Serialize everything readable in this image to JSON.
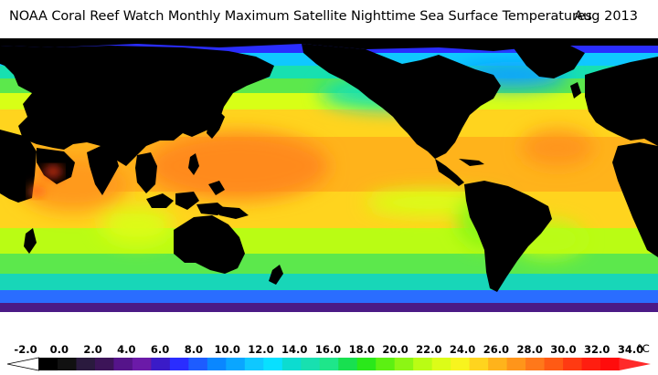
{
  "header": {
    "title": "NOAA Coral Reef Watch Monthly Maximum Satellite Nighttime Sea Surface Temperatures",
    "date": "Aug 2013"
  },
  "icons": {
    "map": "world-sst-map-icon",
    "colorbar": "temperature-colorbar-icon"
  },
  "colors": {
    "land": "#000000",
    "ice": "#ffffff",
    "very_cold": "#4b1a86",
    "cold": "#2f4ff2",
    "cool": "#1eb7ff",
    "mild": "#18e0b0",
    "temperate": "#5be84c",
    "warm": "#d8ff16",
    "tropical": "#ffb31b",
    "hot": "#ff7f1a"
  },
  "legend": {
    "unit": "°C",
    "ticks": [
      "-2.0",
      "0.0",
      "2.0",
      "4.0",
      "6.0",
      "8.0",
      "10.0",
      "12.0",
      "14.0",
      "16.0",
      "18.0",
      "20.0",
      "22.0",
      "24.0",
      "26.0",
      "28.0",
      "30.0",
      "32.0",
      "34.0"
    ],
    "swatches": [
      "#ffffff",
      "#000000",
      "#111111",
      "#2a1a3e",
      "#3c1458",
      "#55148a",
      "#6b1aa8",
      "#3a1bc8",
      "#2a2dff",
      "#1d5cff",
      "#0a87ff",
      "#0aa6ff",
      "#0fc8ff",
      "#08e0ff",
      "#0cdcd0",
      "#18e0b0",
      "#1ee68a",
      "#18e050",
      "#2ae81a",
      "#5cf012",
      "#8cf614",
      "#bafc14",
      "#dcfc18",
      "#f8f41e",
      "#ffd41e",
      "#ffb31b",
      "#ff951a",
      "#ff781a",
      "#ff5a14",
      "#ff3a12",
      "#ff1e10",
      "#ff0c0c",
      "#ff2a2a"
    ]
  }
}
